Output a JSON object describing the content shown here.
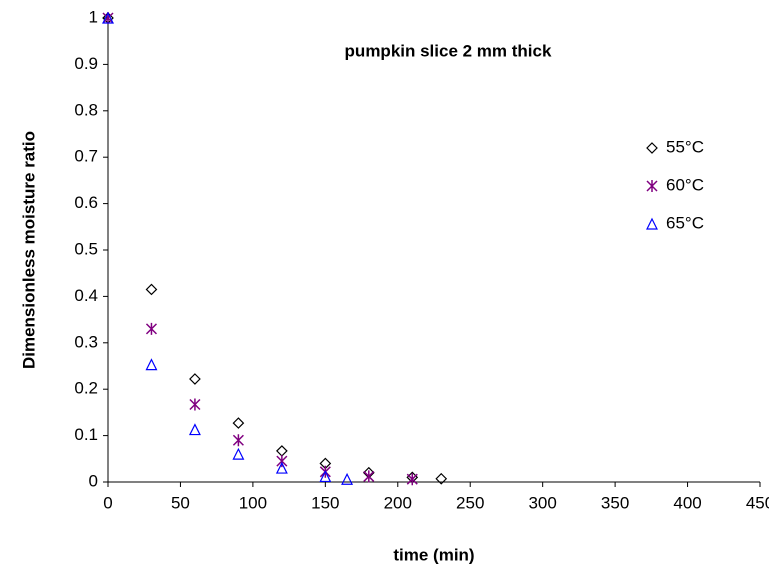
{
  "chart_data": {
    "type": "scatter",
    "title": "pumpkin slice 2 mm thick",
    "x_label": "time (min)",
    "y_label": "Dimensionless moisture ratio",
    "xlim": [
      0,
      450
    ],
    "xticks": [
      0,
      50,
      100,
      150,
      200,
      250,
      300,
      350,
      400,
      450
    ],
    "ylim": [
      0,
      1
    ],
    "yticks": [
      0,
      0.1,
      0.2,
      0.3,
      0.4,
      0.5,
      0.6,
      0.7,
      0.8,
      0.9,
      1
    ],
    "legend": "right",
    "series": [
      {
        "name": "55°C",
        "color": "#000000",
        "marker": "diamond",
        "x": [
          0,
          30,
          60,
          90,
          120,
          150,
          180,
          210,
          230
        ],
        "values": [
          1,
          0.415,
          0.222,
          0.127,
          0.067,
          0.04,
          0.02,
          0.01,
          0.007
        ]
      },
      {
        "name": "60°C",
        "color": "#800080",
        "marker": "asterisk",
        "x": [
          0,
          30,
          60,
          90,
          120,
          150,
          180,
          210
        ],
        "values": [
          1,
          0.33,
          0.167,
          0.09,
          0.045,
          0.022,
          0.012,
          0.006
        ]
      },
      {
        "name": "65°C",
        "color": "#0000ff",
        "marker": "triangle",
        "x": [
          0,
          30,
          60,
          90,
          120,
          150,
          165
        ],
        "values": [
          1,
          0.253,
          0.113,
          0.06,
          0.03,
          0.012,
          0.006
        ]
      }
    ]
  }
}
